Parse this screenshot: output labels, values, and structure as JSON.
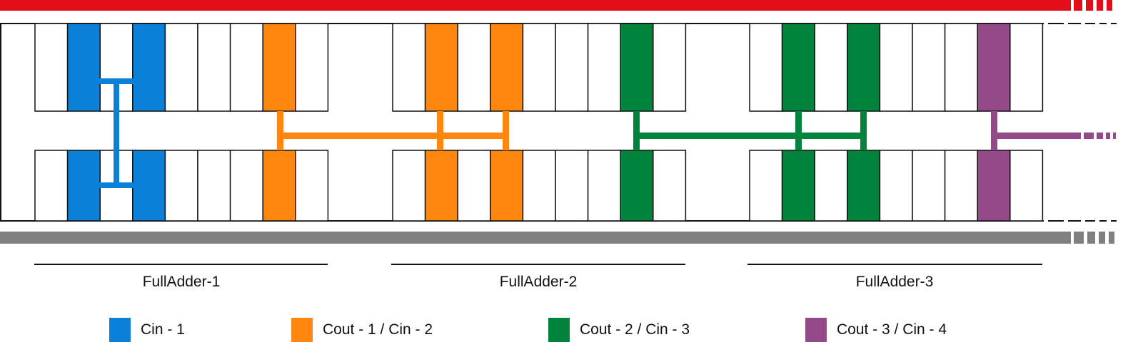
{
  "colors": {
    "top_rail": "#e30e1a",
    "bottom_rail": "#808080",
    "cin_1": "#0a80d8",
    "cout_1_cin_2": "#ff8710",
    "cout_2_cin_3": "#00833a",
    "cout_3_cin_4": "#924a88",
    "outline": "#111111"
  },
  "adders": [
    {
      "label": "FullAdder-1"
    },
    {
      "label": "FullAdder-2"
    },
    {
      "label": "FullAdder-3"
    }
  ],
  "legend": [
    {
      "label": "Cin - 1",
      "color": "#0a80d8"
    },
    {
      "label": "Cout - 1 / Cin - 2",
      "color": "#ff8710"
    },
    {
      "label": "Cout - 2 / Cin - 3",
      "color": "#00833a"
    },
    {
      "label": "Cout - 3 / Cin - 4",
      "color": "#924a88"
    }
  ]
}
